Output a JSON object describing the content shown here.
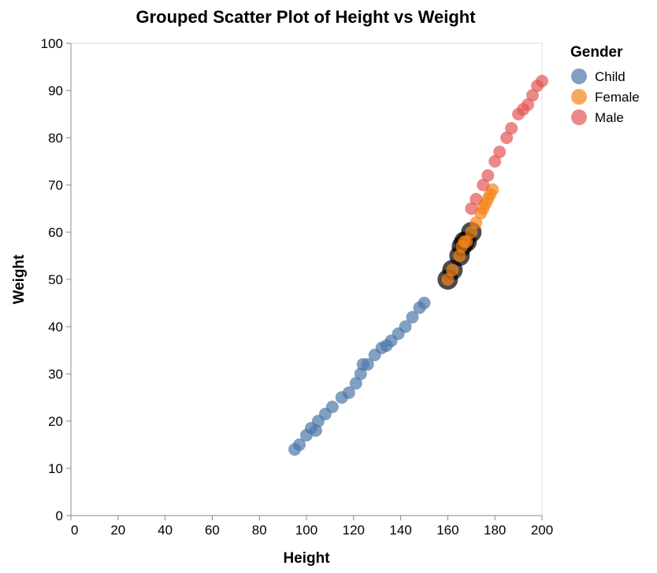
{
  "chart_data": {
    "type": "scatter",
    "title": "Grouped Scatter Plot of Height vs Weight",
    "xlabel": "Height",
    "ylabel": "Weight",
    "xlim": [
      0,
      200
    ],
    "ylim": [
      0,
      100
    ],
    "x_ticks": [
      0,
      20,
      40,
      60,
      80,
      100,
      120,
      140,
      160,
      180,
      200
    ],
    "y_ticks": [
      0,
      10,
      20,
      30,
      40,
      50,
      60,
      70,
      80,
      90,
      100
    ],
    "grid": false,
    "legend": {
      "title": "Gender",
      "position": "right"
    },
    "series": [
      {
        "name": "Child",
        "color": "#4c78a8",
        "points": [
          [
            95,
            14
          ],
          [
            97,
            15
          ],
          [
            100,
            17
          ],
          [
            102,
            18.5
          ],
          [
            104,
            18
          ],
          [
            105,
            20
          ],
          [
            108,
            21.5
          ],
          [
            111,
            23
          ],
          [
            115,
            25
          ],
          [
            118,
            26
          ],
          [
            121,
            28
          ],
          [
            123,
            30
          ],
          [
            124,
            32
          ],
          [
            126,
            32
          ],
          [
            129,
            34
          ],
          [
            132,
            35.5
          ],
          [
            134,
            36
          ],
          [
            136,
            37
          ],
          [
            139,
            38.5
          ],
          [
            142,
            40
          ],
          [
            145,
            42
          ],
          [
            148,
            44
          ],
          [
            150,
            45
          ]
        ]
      },
      {
        "name": "Female",
        "color": "#f58518",
        "points": [
          [
            160,
            50
          ],
          [
            162,
            52
          ],
          [
            165,
            55
          ],
          [
            166,
            57
          ],
          [
            167,
            58
          ],
          [
            168,
            58
          ],
          [
            170,
            60
          ],
          [
            172,
            62
          ],
          [
            174,
            64
          ],
          [
            175,
            65
          ],
          [
            176,
            66
          ],
          [
            177,
            67
          ],
          [
            178,
            68
          ],
          [
            179,
            69
          ]
        ]
      },
      {
        "name": "Male",
        "color": "#e45756",
        "points": [
          [
            170,
            65
          ],
          [
            172,
            67
          ],
          [
            175,
            70
          ],
          [
            177,
            72
          ],
          [
            180,
            75
          ],
          [
            182,
            77
          ],
          [
            185,
            80
          ],
          [
            187,
            82
          ],
          [
            190,
            85
          ],
          [
            192,
            86
          ],
          [
            194,
            87
          ],
          [
            196,
            89
          ],
          [
            198,
            91
          ],
          [
            200,
            92
          ]
        ]
      }
    ],
    "highlighted_points": [
      [
        160,
        50
      ],
      [
        162,
        52
      ],
      [
        165,
        55
      ],
      [
        166,
        57
      ],
      [
        167,
        58
      ],
      [
        168,
        58
      ],
      [
        170,
        60
      ]
    ]
  }
}
